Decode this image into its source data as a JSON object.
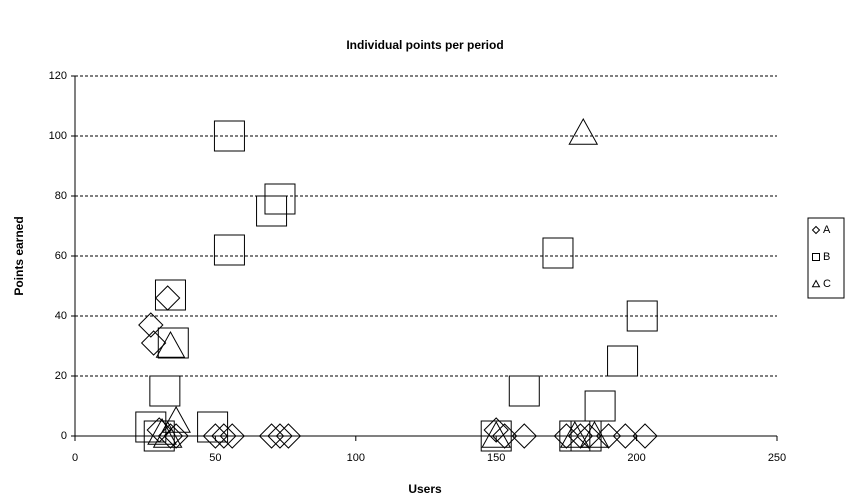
{
  "chart_data": {
    "type": "scatter",
    "title": "Individual points per period",
    "x_label": "Users",
    "y_label": "Points earned",
    "xlim": [
      0,
      250
    ],
    "xticks": [
      0,
      50,
      100,
      150,
      200,
      250
    ],
    "ylim": [
      0,
      120
    ],
    "yticks": [
      0,
      20,
      40,
      60,
      80,
      100,
      120
    ],
    "grid": true,
    "legend": "right",
    "series": [
      {
        "name": "A",
        "marker": "diamond",
        "color": "#000000",
        "x": [
          27,
          28,
          33,
          30,
          34,
          36,
          50,
          53,
          56,
          70,
          73,
          76,
          150,
          153,
          160,
          175,
          180,
          183,
          190,
          196,
          203
        ],
        "values": [
          37,
          31,
          46,
          2,
          0,
          0,
          0,
          0,
          0,
          0,
          0,
          0,
          2,
          0,
          0,
          0,
          0,
          0,
          0,
          0,
          0
        ]
      },
      {
        "name": "B",
        "marker": "square",
        "color": "#000000",
        "x": [
          55,
          70,
          73,
          55,
          34,
          35,
          32,
          27,
          30,
          49,
          172,
          202,
          195,
          187,
          160,
          150,
          178,
          182
        ],
        "values": [
          100,
          75,
          79,
          62,
          47,
          31,
          15,
          3,
          0,
          3,
          61,
          40,
          25,
          10,
          15,
          0,
          0,
          0
        ]
      },
      {
        "name": "C",
        "marker": "triangle",
        "color": "#000000",
        "x": [
          181,
          34,
          36,
          31,
          33,
          150,
          178,
          185
        ],
        "values": [
          101,
          30,
          5,
          1,
          0,
          0,
          0,
          0
        ]
      }
    ]
  }
}
